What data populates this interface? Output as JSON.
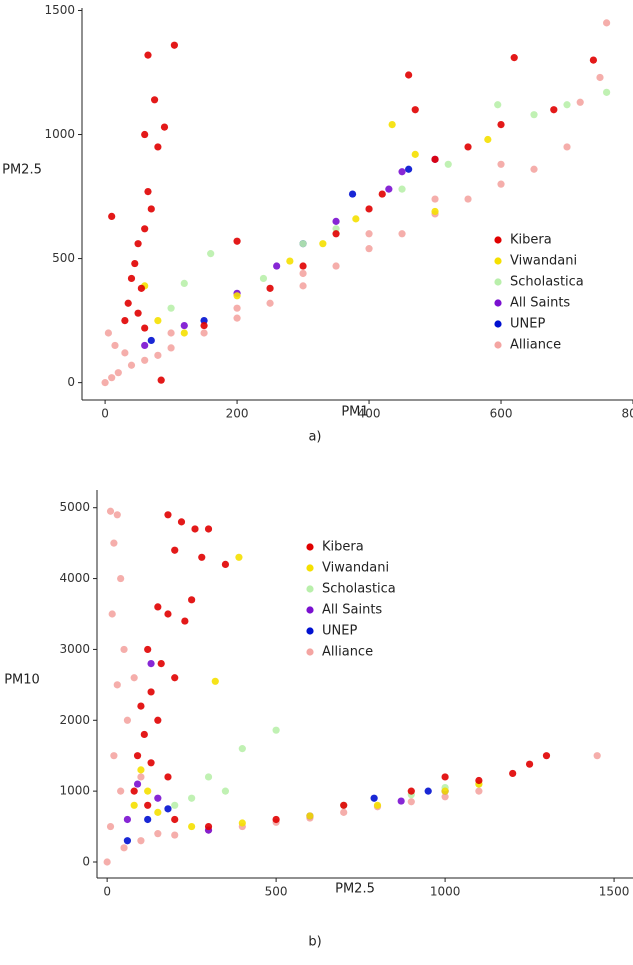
{
  "chart_data": [
    {
      "type": "scatter",
      "xlabel": "PM1",
      "ylabel": "PM2.5",
      "caption": "a)",
      "legend": "right",
      "xlim": [
        -35,
        800
      ],
      "ylim": [
        -70,
        1510
      ],
      "xticks": [
        0,
        200,
        400,
        600,
        800
      ],
      "yticks": [
        0,
        500,
        1000,
        1500
      ],
      "series": [
        {
          "name": "Kibera",
          "color": "#e00000",
          "x": [
            10,
            65,
            105,
            75,
            90,
            60,
            80,
            65,
            70,
            60,
            50,
            45,
            40,
            55,
            35,
            50,
            30,
            60,
            85,
            200,
            460,
            470,
            620,
            740,
            600,
            500,
            420,
            350,
            300,
            250,
            150,
            680,
            550,
            400
          ],
          "y": [
            670,
            1320,
            1360,
            1140,
            1030,
            1000,
            950,
            770,
            700,
            620,
            560,
            480,
            420,
            380,
            320,
            280,
            250,
            220,
            10,
            570,
            1240,
            1100,
            1310,
            1300,
            1040,
            900,
            760,
            600,
            470,
            380,
            230,
            1100,
            950,
            700
          ]
        },
        {
          "name": "Viwandani",
          "color": "#f5e000",
          "x": [
            435,
            470,
            60,
            80,
            280,
            380,
            500,
            200,
            120,
            330,
            580
          ],
          "y": [
            1040,
            920,
            390,
            250,
            490,
            660,
            690,
            350,
            200,
            560,
            980
          ]
        },
        {
          "name": "Scholastica",
          "color": "#b9efab",
          "x": [
            595,
            760,
            160,
            120,
            100,
            300,
            450,
            520,
            350,
            240,
            650,
            700
          ],
          "y": [
            1120,
            1170,
            520,
            400,
            300,
            560,
            780,
            880,
            620,
            420,
            1080,
            1120
          ]
        },
        {
          "name": "All Saints",
          "color": "#7a10d0",
          "x": [
            500,
            450,
            430,
            350,
            260,
            200,
            120,
            60
          ],
          "y": [
            900,
            850,
            780,
            650,
            470,
            360,
            230,
            150
          ]
        },
        {
          "name": "UNEP",
          "color": "#0010d0",
          "x": [
            375,
            460,
            70,
            300,
            150
          ],
          "y": [
            760,
            860,
            170,
            560,
            250
          ]
        },
        {
          "name": "Alliance",
          "color": "#f4a5a2",
          "x": [
            0,
            10,
            20,
            40,
            60,
            80,
            100,
            150,
            200,
            250,
            300,
            350,
            400,
            450,
            500,
            550,
            600,
            650,
            700,
            760,
            750,
            720,
            5,
            15,
            30,
            100,
            200,
            300,
            400,
            500,
            600
          ],
          "y": [
            0,
            20,
            40,
            70,
            90,
            110,
            140,
            200,
            260,
            320,
            390,
            470,
            540,
            600,
            680,
            740,
            800,
            860,
            950,
            1450,
            1230,
            1130,
            200,
            150,
            120,
            200,
            300,
            440,
            600,
            740,
            880
          ]
        }
      ]
    },
    {
      "type": "scatter",
      "xlabel": "PM2.5",
      "ylabel": "PM10",
      "caption": "b)",
      "legend": "top",
      "xlim": [
        -30,
        1556
      ],
      "ylim": [
        -226,
        5250
      ],
      "xticks": [
        0,
        500,
        1000,
        1500
      ],
      "yticks": [
        0,
        1000,
        2000,
        3000,
        4000,
        5000
      ],
      "series": [
        {
          "name": "Kibera",
          "color": "#e00000",
          "x": [
            180,
            220,
            260,
            300,
            350,
            280,
            200,
            150,
            180,
            230,
            250,
            120,
            160,
            200,
            130,
            100,
            150,
            110,
            90,
            130,
            180,
            80,
            120,
            200,
            1000,
            1300,
            1250,
            1100,
            900,
            700,
            500,
            300,
            1200
          ],
          "y": [
            4900,
            4800,
            4700,
            4700,
            4200,
            4300,
            4400,
            3600,
            3500,
            3400,
            3700,
            3000,
            2800,
            2600,
            2400,
            2200,
            2000,
            1800,
            1500,
            1400,
            1200,
            1000,
            800,
            600,
            1200,
            1500,
            1380,
            1150,
            1000,
            800,
            600,
            500,
            1250
          ]
        },
        {
          "name": "Viwandani",
          "color": "#f5e000",
          "x": [
            390,
            320,
            100,
            120,
            80,
            150,
            250,
            400,
            600,
            800,
            1000,
            1100
          ],
          "y": [
            4300,
            2550,
            1300,
            1000,
            800,
            700,
            500,
            550,
            650,
            800,
            1000,
            1100
          ]
        },
        {
          "name": "Scholastica",
          "color": "#b9efab",
          "x": [
            500,
            400,
            300,
            250,
            200,
            350,
            700,
            900,
            1100,
            1000
          ],
          "y": [
            1860,
            1600,
            1200,
            900,
            800,
            1000,
            800,
            950,
            1100,
            1050
          ]
        },
        {
          "name": "All Saints",
          "color": "#7a10d0",
          "x": [
            130,
            90,
            150,
            300,
            600,
            870,
            1000,
            60
          ],
          "y": [
            2800,
            1100,
            900,
            450,
            650,
            860,
            1000,
            600
          ]
        },
        {
          "name": "UNEP",
          "color": "#0010d0",
          "x": [
            180,
            120,
            790,
            950,
            60
          ],
          "y": [
            750,
            600,
            900,
            1000,
            300
          ]
        },
        {
          "name": "Alliance",
          "color": "#f4a5a2",
          "x": [
            0,
            10,
            30,
            20,
            40,
            15,
            50,
            30,
            60,
            20,
            40,
            10,
            50,
            100,
            200,
            300,
            400,
            500,
            600,
            700,
            800,
            900,
            1000,
            1100,
            1450,
            80,
            100,
            150
          ],
          "y": [
            0,
            4950,
            4900,
            4500,
            4000,
            3500,
            3000,
            2500,
            2000,
            1500,
            1000,
            500,
            200,
            300,
            380,
            450,
            500,
            560,
            620,
            700,
            780,
            850,
            920,
            1000,
            1500,
            2600,
            1200,
            400
          ]
        }
      ]
    }
  ]
}
